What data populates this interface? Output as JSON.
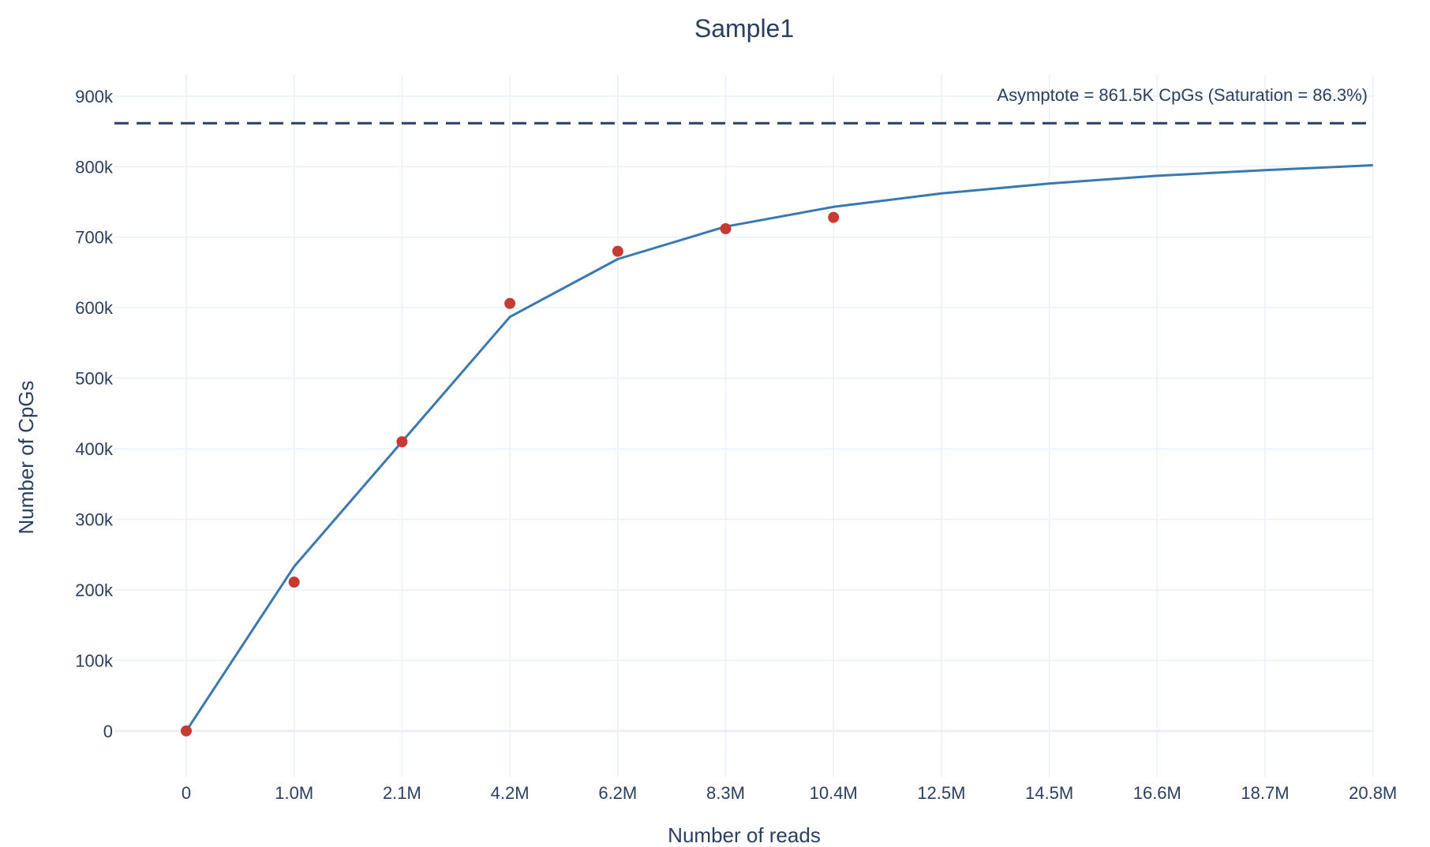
{
  "chart_data": {
    "type": "line",
    "title": "Sample1",
    "xlabel": "Number of reads",
    "ylabel": "Number of CpGs",
    "x_tick_values": [
      0,
      1,
      2.1,
      4.2,
      6.2,
      8.3,
      10.4,
      12.5,
      14.5,
      16.6,
      18.7,
      20.8
    ],
    "x_tick_labels": [
      "0",
      "1.0M",
      "2.1M",
      "4.2M",
      "6.2M",
      "8.3M",
      "10.4M",
      "12.5M",
      "14.5M",
      "16.6M",
      "18.7M",
      "20.8M"
    ],
    "x_tick_spacing": "evenly spaced (categorical-style)",
    "y_tick_values": [
      0,
      100000,
      200000,
      300000,
      400000,
      500000,
      600000,
      700000,
      800000,
      900000
    ],
    "y_tick_labels": [
      "0",
      "100k",
      "200k",
      "300k",
      "400k",
      "500k",
      "600k",
      "700k",
      "800k",
      "900k"
    ],
    "ylim": [
      -65000,
      930000
    ],
    "grid": true,
    "series": [
      {
        "type": "line",
        "color": "#3a78b0",
        "points": [
          {
            "x": "0",
            "y": 0
          },
          {
            "x": "1.0M",
            "y": 233000
          },
          {
            "x": "2.1M",
            "y": 410000
          },
          {
            "x": "4.2M",
            "y": 587000
          },
          {
            "x": "6.2M",
            "y": 669000
          },
          {
            "x": "8.3M",
            "y": 715000
          },
          {
            "x": "10.4M",
            "y": 743000
          },
          {
            "x": "12.5M",
            "y": 762000
          },
          {
            "x": "14.5M",
            "y": 776000
          },
          {
            "x": "16.6M",
            "y": 787000
          },
          {
            "x": "18.7M",
            "y": 795000
          },
          {
            "x": "20.8M",
            "y": 802000
          }
        ]
      },
      {
        "type": "scatter",
        "color": "#c53a32",
        "points": [
          {
            "x": "0",
            "y": 0
          },
          {
            "x": "1.0M",
            "y": 211000
          },
          {
            "x": "2.1M",
            "y": 410000
          },
          {
            "x": "4.2M",
            "y": 606000
          },
          {
            "x": "6.2M",
            "y": 680000
          },
          {
            "x": "8.3M",
            "y": 712000
          },
          {
            "x": "10.4M",
            "y": 728000
          }
        ]
      }
    ],
    "asymptote": {
      "y": 861500,
      "style": "dashed",
      "color": "#2a3f5f",
      "label": "Asymptote = 861.5K CpGs (Saturation = 86.3%)",
      "label_position": "top-right"
    }
  },
  "colors": {
    "background": "#ffffff",
    "grid": "#ebf0f8",
    "zeroline": "#ebf0f8",
    "text": "#2a3f5f"
  }
}
